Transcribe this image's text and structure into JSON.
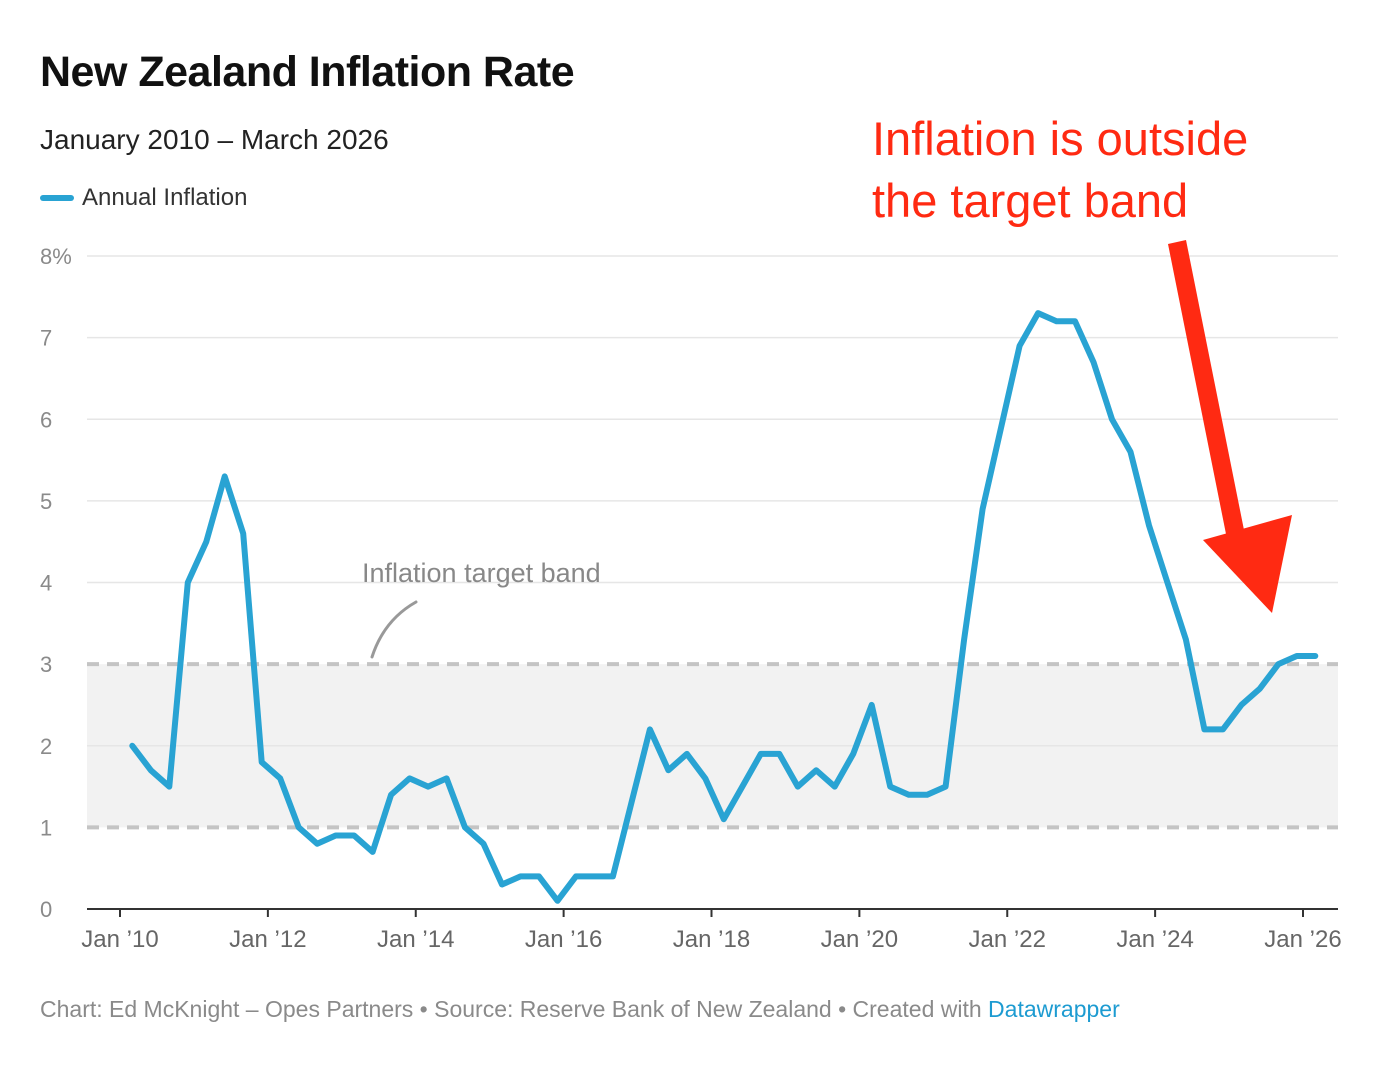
{
  "header": {
    "title": "New Zealand Inflation Rate",
    "subtitle": "January 2010 – March 2026"
  },
  "legend": {
    "label": "Annual Inflation",
    "color": "#29a3d3"
  },
  "callout": {
    "text": "Inflation is outside\nthe target band",
    "color": "#ff2a12",
    "arrow": "red-arrow-pointing-down-left"
  },
  "target_band": {
    "label": "Inflation target band",
    "low": 1,
    "high": 3,
    "fill": "#f2f2f2",
    "line_color": "#c4c4c4"
  },
  "footer": {
    "text": "Chart: Ed McKnight – Opes Partners • Source: Reserve Bank of New Zealand • Created with ",
    "link": "Datawrapper"
  },
  "chart_data": {
    "type": "line",
    "title": "New Zealand Inflation Rate",
    "subtitle": "January 2010 – March 2026",
    "xlabel": "",
    "ylabel": "",
    "ylim": [
      0,
      8
    ],
    "xlim": [
      "2010-01",
      "2026-03"
    ],
    "y_ticks": [
      0,
      1,
      2,
      3,
      4,
      5,
      6,
      7,
      8
    ],
    "y_tick_labels": [
      "0",
      "1",
      "2",
      "3",
      "4",
      "5",
      "6",
      "7",
      "8%"
    ],
    "x_ticks": [
      "2010-01",
      "2012-01",
      "2014-01",
      "2016-01",
      "2018-01",
      "2020-01",
      "2022-01",
      "2024-01",
      "2026-01"
    ],
    "x_tick_labels": [
      "Jan ’10",
      "Jan ’12",
      "Jan ’14",
      "Jan ’16",
      "Jan ’18",
      "Jan ’20",
      "Jan ’22",
      "Jan ’24",
      "Jan ’26"
    ],
    "grid": true,
    "legend_position": "top-left",
    "series": [
      {
        "name": "Annual Inflation",
        "color": "#29a3d3",
        "points": [
          [
            "2010-03",
            2.0
          ],
          [
            "2010-06",
            1.7
          ],
          [
            "2010-09",
            1.5
          ],
          [
            "2010-12",
            4.0
          ],
          [
            "2011-03",
            4.5
          ],
          [
            "2011-06",
            5.3
          ],
          [
            "2011-09",
            4.6
          ],
          [
            "2011-12",
            1.8
          ],
          [
            "2012-03",
            1.6
          ],
          [
            "2012-06",
            1.0
          ],
          [
            "2012-09",
            0.8
          ],
          [
            "2012-12",
            0.9
          ],
          [
            "2013-03",
            0.9
          ],
          [
            "2013-06",
            0.7
          ],
          [
            "2013-09",
            1.4
          ],
          [
            "2013-12",
            1.6
          ],
          [
            "2014-03",
            1.5
          ],
          [
            "2014-06",
            1.6
          ],
          [
            "2014-09",
            1.0
          ],
          [
            "2014-12",
            0.8
          ],
          [
            "2015-03",
            0.3
          ],
          [
            "2015-06",
            0.4
          ],
          [
            "2015-09",
            0.4
          ],
          [
            "2015-12",
            0.1
          ],
          [
            "2016-03",
            0.4
          ],
          [
            "2016-06",
            0.4
          ],
          [
            "2016-09",
            0.4
          ],
          [
            "2016-12",
            1.3
          ],
          [
            "2017-03",
            2.2
          ],
          [
            "2017-06",
            1.7
          ],
          [
            "2017-09",
            1.9
          ],
          [
            "2017-12",
            1.6
          ],
          [
            "2018-03",
            1.1
          ],
          [
            "2018-06",
            1.5
          ],
          [
            "2018-09",
            1.9
          ],
          [
            "2018-12",
            1.9
          ],
          [
            "2019-03",
            1.5
          ],
          [
            "2019-06",
            1.7
          ],
          [
            "2019-09",
            1.5
          ],
          [
            "2019-12",
            1.9
          ],
          [
            "2020-03",
            2.5
          ],
          [
            "2020-06",
            1.5
          ],
          [
            "2020-09",
            1.4
          ],
          [
            "2020-12",
            1.4
          ],
          [
            "2021-03",
            1.5
          ],
          [
            "2021-06",
            3.3
          ],
          [
            "2021-09",
            4.9
          ],
          [
            "2021-12",
            5.9
          ],
          [
            "2022-03",
            6.9
          ],
          [
            "2022-06",
            7.3
          ],
          [
            "2022-09",
            7.2
          ],
          [
            "2022-12",
            7.2
          ],
          [
            "2023-03",
            6.7
          ],
          [
            "2023-06",
            6.0
          ],
          [
            "2023-09",
            5.6
          ],
          [
            "2023-12",
            4.7
          ],
          [
            "2024-03",
            4.0
          ],
          [
            "2024-06",
            3.3
          ],
          [
            "2024-09",
            2.2
          ],
          [
            "2024-12",
            2.2
          ],
          [
            "2025-03",
            2.5
          ],
          [
            "2025-06",
            2.7
          ],
          [
            "2025-09",
            3.0
          ],
          [
            "2025-12",
            3.1
          ],
          [
            "2026-03",
            3.1
          ]
        ]
      }
    ]
  }
}
